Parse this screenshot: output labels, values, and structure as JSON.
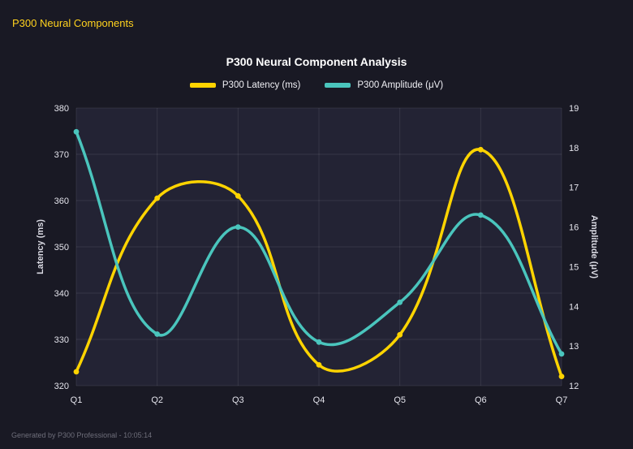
{
  "header": {
    "title": "P300 Neural Components"
  },
  "footer": {
    "text": "Generated by P300 Professional - 10:05:14"
  },
  "colors": {
    "page_bg": "#191924",
    "plot_bg": "#232334",
    "grid": "rgba(255,255,255,0.09)",
    "accent_yellow": "#ffd400",
    "accent_teal": "#4ac5bd",
    "title_text": "#ffffff",
    "tick_text": "#e4e4ec",
    "axis_title_text": "#d9d9e2",
    "footer_text": "#6e6e7a",
    "header_text": "#ffd21e"
  },
  "chart_data": {
    "type": "line",
    "title": "P300 Neural Component Analysis",
    "categories": [
      "Q1",
      "Q2",
      "Q3",
      "Q4",
      "Q5",
      "Q6",
      "Q7"
    ],
    "series": [
      {
        "name": "P300 Latency (ms)",
        "color": "#ffd400",
        "axis": "left",
        "values": [
          323,
          360.5,
          361,
          324.5,
          331,
          371,
          322
        ]
      },
      {
        "name": "P300 Amplitude (μV)",
        "color": "#4ac5bd",
        "axis": "right",
        "values": [
          18.4,
          13.3,
          16.0,
          13.1,
          14.1,
          16.3,
          12.8
        ]
      }
    ],
    "left_axis": {
      "label": "Latency (ms)",
      "min": 320,
      "max": 380,
      "step": 10
    },
    "right_axis": {
      "label": "Amplitude (μV)",
      "min": 12,
      "max": 19,
      "step": 1
    },
    "grid": true,
    "legend_position": "top",
    "curve": "smooth"
  }
}
